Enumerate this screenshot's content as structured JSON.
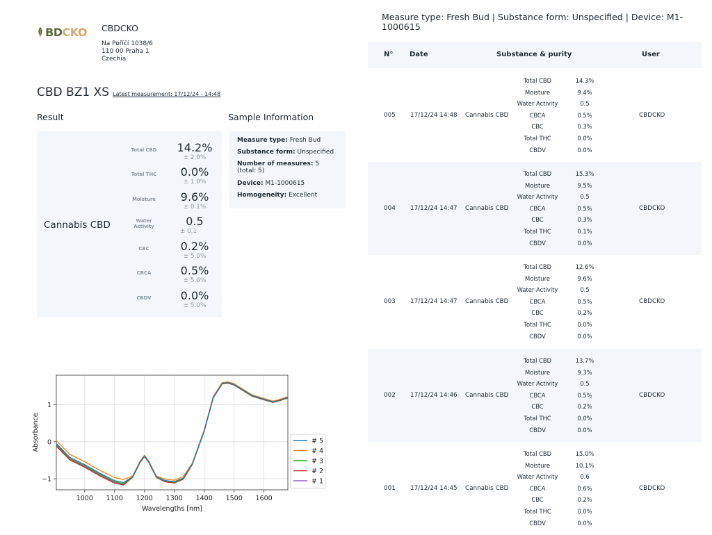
{
  "header": {
    "logo_text": "CBDCKO",
    "logo_left": "BD",
    "logo_right": "CKO",
    "company": "CBDCKO",
    "address": [
      "Na Poříčí 1038/6",
      "110 00 Praha 1",
      "Czechia"
    ],
    "title": "CBD BZ1 XS",
    "latest_measurement": "Latest measurement: 17/12/24 - 14:48"
  },
  "result": {
    "heading": "Result",
    "product": "Cannabis CBD",
    "metrics": [
      {
        "label": "Total CBD",
        "value": "14.2%",
        "error": "± 2.0%"
      },
      {
        "label": "Total THC",
        "value": "0.0%",
        "error": "± 1.0%"
      },
      {
        "label": "Moisture",
        "value": "9.6%",
        "error": "± 0.1%"
      },
      {
        "label": "Water Activity",
        "value": "0.5",
        "error": "± 0.1"
      },
      {
        "label": "CBC",
        "value": "0.2%",
        "error": "± 5.0%"
      },
      {
        "label": "CBCA",
        "value": "0.5%",
        "error": "± 5.0%"
      },
      {
        "label": "CBDV",
        "value": "0.0%",
        "error": "± 5.0%"
      }
    ]
  },
  "sample": {
    "heading": "Sample Information",
    "measure_type_label": "Measure type:",
    "measure_type": "Fresh Bud",
    "substance_form_label": "Substance form:",
    "substance_form": "Unspecified",
    "num_measures_label": "Number of measures:",
    "num_measures": "5",
    "num_total": "(total: 5)",
    "device_label": "Device:",
    "device": "M1-1000615",
    "homogeneity_label": "Homogeneity:",
    "homogeneity": "Excellent"
  },
  "chart_data": {
    "type": "line",
    "xlabel": "Wavelengths [nm]",
    "ylabel": "Absorbance",
    "xlim": [
      905,
      1680
    ],
    "ylim": [
      -1.3,
      1.8
    ],
    "xticks": [
      1000,
      1100,
      1200,
      1300,
      1400,
      1500,
      1600
    ],
    "yticks": [
      -1,
      0,
      1
    ],
    "grid": true,
    "legend_position": "right",
    "series": [
      {
        "name": "# 5",
        "color": "#1f77b4",
        "offset": 0.0
      },
      {
        "name": "# 4",
        "color": "#ff7f0e",
        "offset": 0.08
      },
      {
        "name": "# 3",
        "color": "#2ca02c",
        "offset": -0.03
      },
      {
        "name": "# 2",
        "color": "#d62728",
        "offset": -0.07
      },
      {
        "name": "# 1",
        "color": "#9467bd",
        "offset": -0.05
      }
    ],
    "x": [
      905,
      950,
      1000,
      1050,
      1100,
      1130,
      1160,
      1185,
      1200,
      1215,
      1240,
      1270,
      1300,
      1330,
      1360,
      1400,
      1430,
      1460,
      1480,
      1500,
      1530,
      1560,
      1600,
      1630,
      1650,
      1680
    ],
    "y": [
      -0.05,
      -0.42,
      -0.62,
      -0.85,
      -1.05,
      -1.1,
      -0.95,
      -0.55,
      -0.38,
      -0.55,
      -0.95,
      -1.05,
      -1.08,
      -0.98,
      -0.6,
      0.3,
      1.2,
      1.58,
      1.6,
      1.55,
      1.4,
      1.25,
      1.15,
      1.08,
      1.12,
      1.2
    ]
  },
  "table": {
    "heading": "Measure type: Fresh Bud | Substance form: Unspecified | Device: M1-1000615",
    "columns": {
      "n": "N°",
      "date": "Date",
      "substance": "Substance & purity",
      "user": "User"
    },
    "rows": [
      {
        "n": "005",
        "date": "17/12/24 14:48",
        "product": "Cannabis CBD",
        "user": "CBDCKO",
        "items": [
          [
            "Total CBD",
            "14.3%"
          ],
          [
            "Moisture",
            "9.4%"
          ],
          [
            "Water Activity",
            "0.5"
          ],
          [
            "CBCA",
            "0.5%"
          ],
          [
            "CBC",
            "0.3%"
          ],
          [
            "Total THC",
            "0.0%"
          ],
          [
            "CBDV",
            "0.0%"
          ]
        ]
      },
      {
        "n": "004",
        "date": "17/12/24 14:47",
        "product": "Cannabis CBD",
        "user": "CBDCKO",
        "items": [
          [
            "Total CBD",
            "15.3%"
          ],
          [
            "Moisture",
            "9.5%"
          ],
          [
            "Water Activity",
            "0.5"
          ],
          [
            "CBCA",
            "0.5%"
          ],
          [
            "CBC",
            "0.3%"
          ],
          [
            "Total THC",
            "0.1%"
          ],
          [
            "CBDV",
            "0.0%"
          ]
        ]
      },
      {
        "n": "003",
        "date": "17/12/24 14:47",
        "product": "Cannabis CBD",
        "user": "CBDCKO",
        "items": [
          [
            "Total CBD",
            "12.6%"
          ],
          [
            "Moisture",
            "9.6%"
          ],
          [
            "Water Activity",
            "0.5"
          ],
          [
            "CBCA",
            "0.5%"
          ],
          [
            "CBC",
            "0.2%"
          ],
          [
            "Total THC",
            "0.0%"
          ],
          [
            "CBDV",
            "0.0%"
          ]
        ]
      },
      {
        "n": "002",
        "date": "17/12/24 14:46",
        "product": "Cannabis CBD",
        "user": "CBDCKO",
        "items": [
          [
            "Total CBD",
            "13.7%"
          ],
          [
            "Moisture",
            "9.3%"
          ],
          [
            "Water Activity",
            "0.5"
          ],
          [
            "CBCA",
            "0.5%"
          ],
          [
            "CBC",
            "0.2%"
          ],
          [
            "Total THC",
            "0.0%"
          ],
          [
            "CBDV",
            "0.0%"
          ]
        ]
      },
      {
        "n": "001",
        "date": "17/12/24 14:45",
        "product": "Cannabis CBD",
        "user": "CBDCKO",
        "items": [
          [
            "Total CBD",
            "15.0%"
          ],
          [
            "Moisture",
            "10.1%"
          ],
          [
            "Water Activity",
            "0.6"
          ],
          [
            "CBCA",
            "0.6%"
          ],
          [
            "CBC",
            "0.2%"
          ],
          [
            "Total THC",
            "0.0%"
          ],
          [
            "CBDV",
            "0.0%"
          ]
        ]
      }
    ]
  }
}
